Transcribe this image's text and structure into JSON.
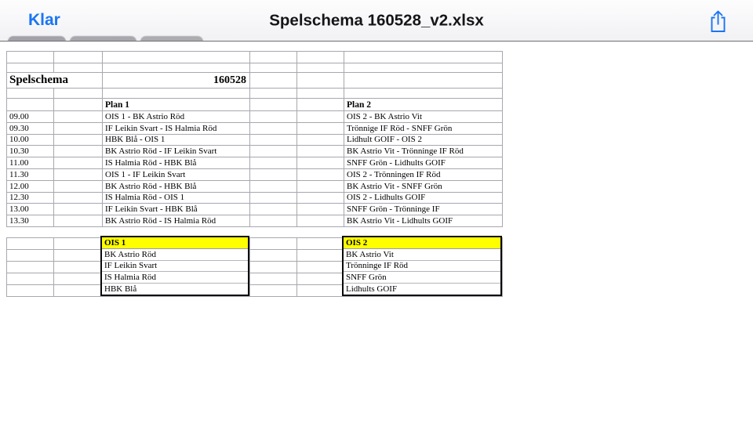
{
  "navbar": {
    "done_label": "Klar",
    "title": "Spelschema 160528_v2.xlsx"
  },
  "colors": {
    "accent_blue": "#1a75f2",
    "highlight_yellow": "#ffff00"
  },
  "sheet": {
    "title_label": "Spelschema",
    "title_value": "160528",
    "plan1_header": "Plan 1",
    "plan2_header": "Plan 2",
    "schedule": [
      {
        "time": "09.00",
        "plan1": "OIS 1 - BK Astrio Röd",
        "plan2": "OIS 2 - BK Astrio Vit"
      },
      {
        "time": "09.30",
        "plan1": "IF Leikin Svart - IS Halmia Röd",
        "plan2": "Trönnige IF Röd - SNFF Grön"
      },
      {
        "time": "10.00",
        "plan1": "HBK Blå - OIS 1",
        "plan2": "Lidhult GOIF - OIS 2"
      },
      {
        "time": "10.30",
        "plan1": "BK Astrio Röd - IF Leikin Svart",
        "plan2": "BK Astrio Vit - Trönninge IF Röd"
      },
      {
        "time": "11.00",
        "plan1": "IS Halmia Röd - HBK Blå",
        "plan2": "SNFF Grön - Lidhults GOIF"
      },
      {
        "time": "11.30",
        "plan1": "OIS 1 - IF Leikin Svart",
        "plan2": "OIS 2 - Trönningen IF Röd"
      },
      {
        "time": "12.00",
        "plan1": "BK Astrio Röd - HBK Blå",
        "plan2": "BK Astrio Vit - SNFF Grön"
      },
      {
        "time": "12.30",
        "plan1": "IS Halmia Röd - OIS 1",
        "plan2": "OIS 2 - Lidhults GOIF"
      },
      {
        "time": "13.00",
        "plan1": "IF Leikin Svart - HBK Blå",
        "plan2": "SNFF Grön - Trönninge IF"
      },
      {
        "time": "13.30",
        "plan1": "BK Astrio Röd - IS Halmia Röd",
        "plan2": "BK Astrio Vit - Lidhults GOIF"
      }
    ],
    "groups": [
      {
        "name": "OIS 1",
        "teams": [
          "BK Astrio Röd",
          "IF Leikin Svart",
          "IS Halmia Röd",
          "HBK Blå"
        ]
      },
      {
        "name": "OIS 2",
        "teams": [
          "BK Astrio Vit",
          "Trönninge IF Röd",
          "SNFF Grön",
          "Lidhults GOIF"
        ]
      }
    ]
  }
}
